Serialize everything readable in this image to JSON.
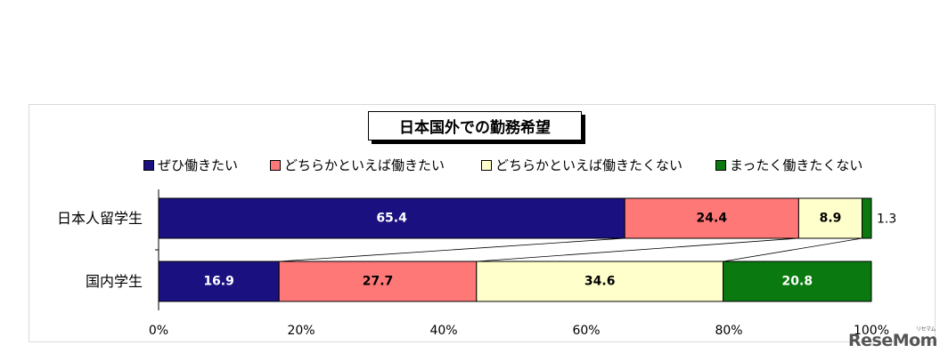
{
  "chart_data": {
    "type": "bar",
    "orientation": "horizontal",
    "stacked": true,
    "percent_stacked": true,
    "title": "日本国外での勤務希望",
    "categories": [
      "日本人留学生",
      "国内学生"
    ],
    "series": [
      {
        "name": "ぜひ働きたい",
        "color": "#1a1080",
        "label_color": "#ffffff",
        "values": [
          65.4,
          16.9
        ],
        "labels": [
          "65.4",
          "16.9"
        ]
      },
      {
        "name": "どちらかといえば働きたい",
        "color": "#ff7878",
        "label_color": "#000000",
        "values": [
          24.4,
          27.7
        ],
        "labels": [
          "24.4",
          "27.7"
        ]
      },
      {
        "name": "どちらかといえば働きたくない",
        "color": "#ffffcc",
        "label_color": "#000000",
        "values": [
          8.9,
          34.6
        ],
        "labels": [
          "8.9",
          "34.6"
        ]
      },
      {
        "name": "まったく働きたくない",
        "color": "#0a7a10",
        "label_color": "#ffffff",
        "values": [
          1.3,
          20.8
        ],
        "labels": [
          "1.3",
          "20.8"
        ]
      }
    ],
    "xlim": [
      0,
      100
    ],
    "x_ticks": [
      "0%",
      "20%",
      "40%",
      "60%",
      "80%",
      "100%"
    ],
    "legend_position": "top",
    "series_lines": true,
    "grid": false
  },
  "watermark": {
    "text": "ReseMom",
    "dots": "リセマム"
  }
}
